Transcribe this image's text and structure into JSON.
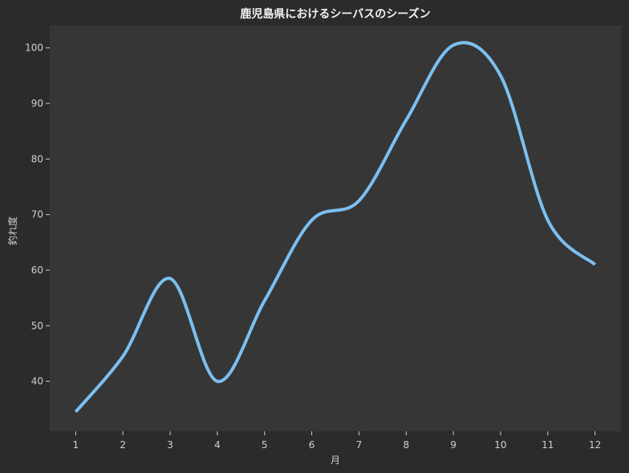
{
  "chart_data": {
    "type": "line",
    "title": "鹿児島県におけるシーバスのシーズン",
    "xlabel": "月",
    "ylabel": "釣れ度",
    "x": [
      1,
      2,
      3,
      4,
      5,
      6,
      7,
      8,
      9,
      10,
      11,
      12
    ],
    "x_tick_labels": [
      "1",
      "2",
      "3",
      "4",
      "5",
      "6",
      "7",
      "8",
      "9",
      "10",
      "11",
      "12"
    ],
    "y_ticks": [
      40,
      50,
      60,
      70,
      80,
      90,
      100
    ],
    "y_tick_labels": [
      "40",
      "50",
      "60",
      "70",
      "80",
      "90",
      "100"
    ],
    "xlim": [
      0.45,
      12.55
    ],
    "ylim": [
      31,
      104
    ],
    "grid": false,
    "series": [
      {
        "values": [
          34.5,
          44.5,
          58.5,
          40,
          54.5,
          69,
          72.5,
          87,
          100.5,
          95,
          69,
          61
        ],
        "color": "#7cbff0"
      }
    ],
    "colors": {
      "background": "#2b2b2b",
      "plot_area": "#363636",
      "text": "#cfcfcf",
      "title": "#f2f2f2"
    }
  }
}
